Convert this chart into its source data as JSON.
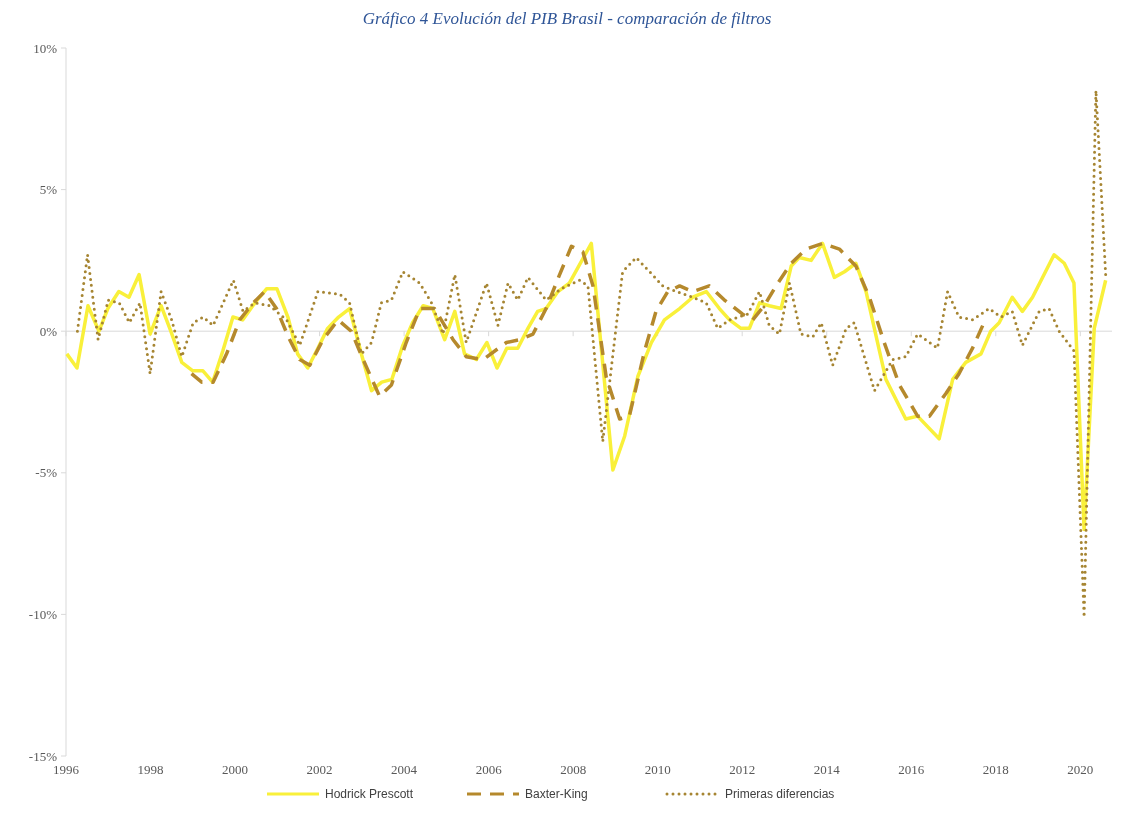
{
  "chart_data": {
    "type": "line",
    "title": "Gráfico 4 Evolución del PIB Brasil - comparación de filtros",
    "xlim": [
      1996,
      2020.75
    ],
    "xticks": [
      1996,
      1998,
      2000,
      2002,
      2004,
      2006,
      2008,
      2010,
      2012,
      2014,
      2016,
      2018,
      2020
    ],
    "ylim": [
      -15,
      10
    ],
    "yticks": [
      {
        "value": -15,
        "label": "-15%"
      },
      {
        "value": -10,
        "label": "-10%"
      },
      {
        "value": -5,
        "label": "-5%"
      },
      {
        "value": 0,
        "label": "0%"
      },
      {
        "value": 5,
        "label": "5%"
      },
      {
        "value": 10,
        "label": "10%"
      }
    ],
    "legend": "bottom",
    "series": [
      {
        "name": "Hodrick Prescott",
        "color": "#f9f03a",
        "line_style": "solid",
        "x": [
          1996.02,
          1996.26,
          1996.52,
          1996.78,
          1996.99,
          1997.25,
          1997.49,
          1997.73,
          1997.99,
          1998.25,
          1998.48,
          1998.74,
          1999.0,
          1999.24,
          1999.47,
          1999.71,
          1999.95,
          2000.18,
          2000.47,
          2000.75,
          2000.99,
          2001.25,
          2001.48,
          2001.72,
          2001.96,
          2002.19,
          2002.45,
          2002.71,
          2002.97,
          2003.23,
          2003.47,
          2003.71,
          2003.97,
          2004.2,
          2004.45,
          2004.68,
          2004.96,
          2005.2,
          2005.43,
          2005.71,
          2005.96,
          2006.2,
          2006.43,
          2006.69,
          2006.93,
          2007.16,
          2007.36,
          2007.64,
          2007.91,
          2008.43,
          2008.94,
          2009.22,
          2009.53,
          2009.85,
          2010.16,
          2010.52,
          2010.83,
          2011.15,
          2011.46,
          2011.7,
          2011.97,
          2012.17,
          2012.41,
          2012.64,
          2012.92,
          2013.16,
          2013.35,
          2013.63,
          2013.9,
          2014.18,
          2014.42,
          2014.69,
          2014.93,
          2015.4,
          2015.87,
          2016.15,
          2016.66,
          2016.98,
          2017.29,
          2017.65,
          2017.88,
          2018.08,
          2018.39,
          2018.63,
          2018.87,
          2019.38,
          2019.62,
          2019.85,
          2020.09,
          2020.33,
          2020.6
        ],
        "values": [
          -0.8,
          -1.3,
          0.9,
          0.0,
          0.8,
          1.4,
          1.2,
          2.0,
          -0.1,
          0.9,
          0.0,
          -1.1,
          -1.4,
          -1.4,
          -1.8,
          -0.7,
          0.5,
          0.4,
          1.0,
          1.5,
          1.5,
          0.5,
          -0.8,
          -1.3,
          -0.6,
          0.1,
          0.5,
          0.8,
          -0.7,
          -2.1,
          -1.8,
          -1.7,
          -0.5,
          0.3,
          0.9,
          0.8,
          -0.3,
          0.7,
          -0.8,
          -1.0,
          -0.4,
          -1.3,
          -0.6,
          -0.6,
          0.1,
          0.7,
          0.8,
          1.4,
          1.7,
          3.1,
          -4.9,
          -3.7,
          -1.6,
          -0.4,
          0.4,
          0.8,
          1.2,
          1.4,
          0.8,
          0.4,
          0.1,
          0.1,
          1.0,
          0.9,
          0.8,
          2.3,
          2.6,
          2.5,
          3.1,
          1.9,
          2.1,
          2.4,
          1.4,
          -1.7,
          -3.1,
          -3.0,
          -3.8,
          -1.7,
          -1.1,
          -0.8,
          0.0,
          0.3,
          1.2,
          0.7,
          1.2,
          2.7,
          2.4,
          1.7,
          -7.0,
          0.1,
          1.8
        ]
      },
      {
        "name": "Baxter-King",
        "color": "#b5892c",
        "line_style": "dashed",
        "x": [
          1998.97,
          1999.21,
          1999.48,
          1999.8,
          2000.11,
          2000.43,
          2000.7,
          2000.98,
          2001.26,
          2001.53,
          2001.77,
          2002.08,
          2002.44,
          2002.75,
          2003.03,
          2003.42,
          2003.7,
          2004.05,
          2004.37,
          2004.45,
          2004.72,
          2005.16,
          2005.47,
          2005.87,
          2006.42,
          2006.73,
          2007.05,
          2007.36,
          2007.68,
          2007.96,
          2008.23,
          2008.47,
          2008.78,
          2009.1,
          2009.33,
          2009.69,
          2009.96,
          2010.24,
          2010.52,
          2010.83,
          2011.22,
          2011.58,
          2012.01,
          2012.25,
          2012.52,
          2012.8,
          2013.16,
          2013.51,
          2013.9,
          2014.3,
          2014.69,
          2015.01,
          2015.36,
          2015.72,
          2016.15,
          2016.43,
          2016.82,
          2017.13,
          2017.45,
          2017.69
        ],
        "values": [
          -1.5,
          -1.8,
          -1.8,
          -0.8,
          0.4,
          1.0,
          1.4,
          0.8,
          -0.2,
          -1.0,
          -1.2,
          -0.3,
          0.4,
          0.0,
          -1.0,
          -2.3,
          -1.9,
          -0.4,
          0.8,
          0.8,
          0.8,
          -0.3,
          -0.9,
          -1.0,
          -0.4,
          -0.3,
          -0.1,
          0.8,
          2.0,
          3.0,
          2.8,
          1.6,
          -1.6,
          -3.1,
          -3.0,
          -0.7,
          0.7,
          1.4,
          1.6,
          1.4,
          1.6,
          1.1,
          0.6,
          0.4,
          0.9,
          1.6,
          2.4,
          2.9,
          3.1,
          2.9,
          2.3,
          1.2,
          -0.4,
          -1.9,
          -3.0,
          -3.0,
          -2.2,
          -1.5,
          -0.6,
          0.2
        ]
      },
      {
        "name": "Primeras diferencias",
        "color": "#a68532",
        "line_style": "dotted",
        "x": [
          1996.27,
          1996.51,
          1996.65,
          1996.76,
          1997.0,
          1997.26,
          1997.5,
          1997.75,
          1997.99,
          1998.25,
          1998.5,
          1998.74,
          1999.01,
          1999.25,
          1999.48,
          1999.96,
          2000.19,
          2000.47,
          2000.82,
          2001.22,
          2001.53,
          2001.96,
          2002.48,
          2002.71,
          2002.99,
          2003.23,
          2003.46,
          2003.7,
          2003.97,
          2004.37,
          2004.65,
          2004.92,
          2005.2,
          2005.47,
          2005.95,
          2006.22,
          2006.46,
          2006.69,
          2006.93,
          2007.36,
          2007.72,
          2008.15,
          2008.35,
          2008.7,
          2009.02,
          2009.17,
          2009.49,
          2009.81,
          2010.12,
          2010.44,
          2010.83,
          2011.15,
          2011.42,
          2011.7,
          2012.13,
          2012.41,
          2012.64,
          2012.88,
          2013.12,
          2013.39,
          2013.67,
          2013.87,
          2014.14,
          2014.46,
          2014.65,
          2015.13,
          2015.56,
          2015.87,
          2016.15,
          2016.62,
          2016.86,
          2017.13,
          2017.45,
          2017.84,
          2018.12,
          2018.39,
          2018.63,
          2019.03,
          2019.26,
          2019.5,
          2019.85,
          2020.09,
          2020.37,
          2020.6
        ],
        "values": [
          0.0,
          2.7,
          1.0,
          -0.3,
          1.1,
          1.0,
          0.3,
          1.0,
          -1.5,
          1.4,
          0.4,
          -0.9,
          0.3,
          0.5,
          0.2,
          1.8,
          0.7,
          1.0,
          0.9,
          0.4,
          -0.5,
          1.4,
          1.3,
          1.0,
          -0.8,
          -0.4,
          1.0,
          1.1,
          2.1,
          1.7,
          1.0,
          -0.1,
          2.0,
          -0.4,
          1.7,
          0.2,
          1.7,
          1.1,
          1.9,
          1.1,
          1.5,
          1.8,
          1.6,
          -3.9,
          0.2,
          2.1,
          2.6,
          2.1,
          1.6,
          1.4,
          1.2,
          1.0,
          0.1,
          0.4,
          0.6,
          1.4,
          0.2,
          -0.1,
          1.7,
          -0.1,
          -0.2,
          0.3,
          -1.2,
          0.1,
          0.3,
          -2.1,
          -1.0,
          -0.9,
          -0.1,
          -0.6,
          1.4,
          0.5,
          0.4,
          0.8,
          0.5,
          0.7,
          -0.5,
          0.7,
          0.8,
          0.0,
          -0.7,
          -10.1,
          8.5,
          2.0
        ]
      }
    ]
  }
}
